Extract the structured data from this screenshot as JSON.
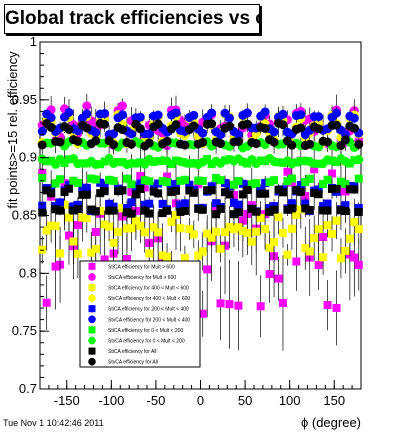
{
  "title": "Global track efficiencies vs ϕ",
  "timestamp": "Tue Nov  1 10:42:46 2011",
  "chart_data": {
    "type": "scatter",
    "title": "Global track efficiencies vs ϕ",
    "xlabel": "ϕ (degree)",
    "ylabel": "fit points>=15 rel. efficiency",
    "xlim": [
      -180,
      180
    ],
    "ylim": [
      0.7,
      1.0
    ],
    "x_ticks": [
      -150,
      -100,
      -50,
      0,
      50,
      100,
      150
    ],
    "x_tick_labels": [
      "-150",
      "-100",
      "-50",
      "0",
      "50",
      "100",
      "150"
    ],
    "y_ticks": [
      0.7,
      0.75,
      0.8,
      0.85,
      0.9,
      0.95,
      1.0
    ],
    "y_tick_labels": [
      "0.7",
      "0.75",
      "0.8",
      "0.85",
      "0.9",
      "0.95",
      "1"
    ],
    "legend_position": "bottom-left",
    "bin_width_deg": 5,
    "series": [
      {
        "name": "StiCA efficiency  for Mult > 600",
        "color": "#ff00ff",
        "marker": "square",
        "baseline": 0.83,
        "amplitude": 0.0,
        "scatter": 0.07,
        "yerr": 0.03,
        "seed": 11
      },
      {
        "name": "StvCA efficiency  for Mult > 600",
        "color": "#ff00ff",
        "marker": "circle",
        "baseline": 0.928,
        "amplitude": 0.008,
        "scatter": 0.012,
        "yerr": 0.01,
        "seed": 12
      },
      {
        "name": "StiCA efficiency  for 400 < Mult < 600",
        "color": "#ffff00",
        "marker": "square",
        "baseline": 0.836,
        "amplitude": 0.012,
        "scatter": 0.015,
        "yerr": 0.015,
        "seed": 21
      },
      {
        "name": "StvCA efficiency  for 400 < Mult < 600",
        "color": "#ffff00",
        "marker": "circle",
        "baseline": 0.925,
        "amplitude": 0.01,
        "scatter": 0.006,
        "yerr": 0.006,
        "seed": 22
      },
      {
        "name": "StiCA efficiency  for 200 < Mult < 400",
        "color": "#0000ff",
        "marker": "square",
        "baseline": 0.866,
        "amplitude": 0.012,
        "scatter": 0.004,
        "yerr": 0.005,
        "seed": 31
      },
      {
        "name": "StvCA efficiency  for 200 < Mult < 400",
        "color": "#0000ff",
        "marker": "circle",
        "baseline": 0.93,
        "amplitude": 0.01,
        "scatter": 0.003,
        "yerr": 0.004,
        "seed": 32
      },
      {
        "name": "StiCA efficiency  for 0 < Mult < 200",
        "color": "#00ff00",
        "marker": "square",
        "baseline": 0.888,
        "amplitude": 0.012,
        "scatter": 0.003,
        "yerr": 0.003,
        "seed": 41
      },
      {
        "name": "StvCA efficiency  for 0 < Mult < 200",
        "color": "#00ff00",
        "marker": "circle",
        "baseline": 0.904,
        "amplitude": 0.01,
        "scatter": 0.003,
        "yerr": 0.003,
        "seed": 42
      },
      {
        "name": "StiCA efficiency  for All",
        "color": "#000000",
        "marker": "square",
        "baseline": 0.862,
        "amplitude": 0.012,
        "scatter": 0.003,
        "yerr": 0.003,
        "seed": 51
      },
      {
        "name": "StvCA efficiency  for All",
        "color": "#000000",
        "marker": "circle",
        "baseline": 0.92,
        "amplitude": 0.01,
        "scatter": 0.003,
        "yerr": 0.003,
        "seed": 52
      }
    ]
  }
}
